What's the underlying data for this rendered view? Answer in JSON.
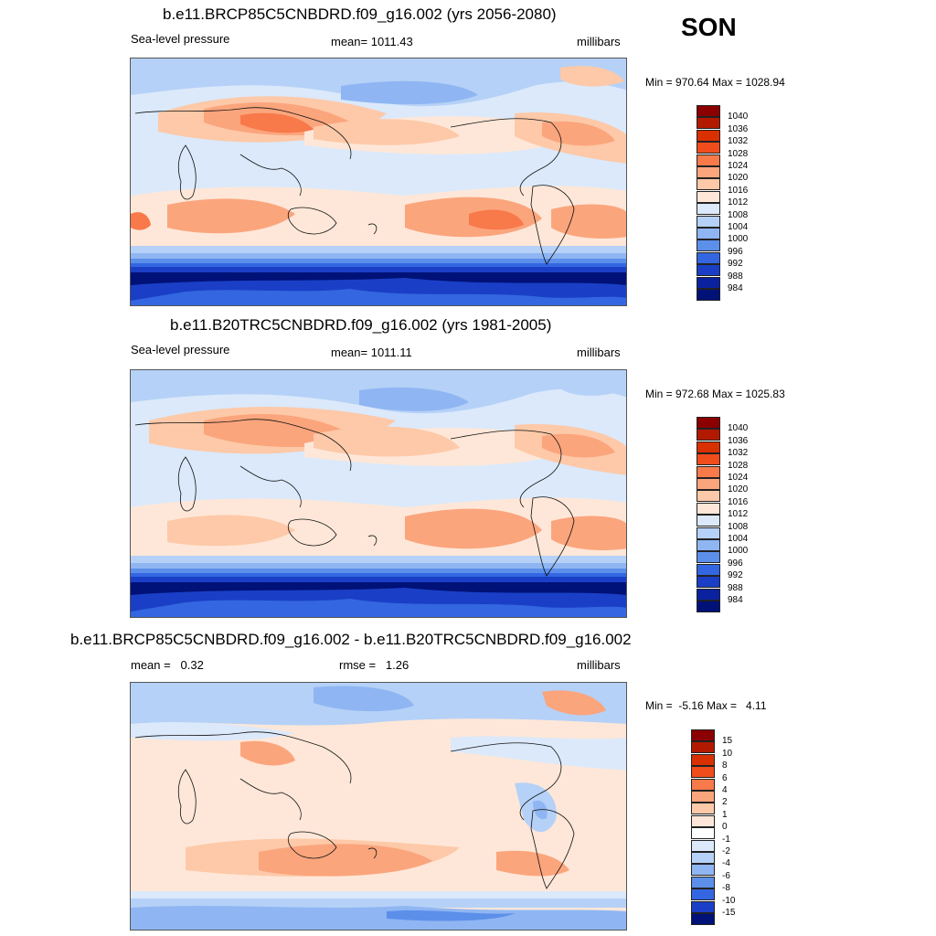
{
  "season": "SON",
  "panels": [
    {
      "title": "b.e11.BRCP85C5CNBDRD.f09_g16.002 (yrs 2056-2080)",
      "left_label": "Sea-level pressure",
      "center_label": "mean= 1011.43",
      "right_label": "millibars",
      "minmax": "Min = 970.64 Max = 1028.94",
      "colorbar": {
        "labels": [
          "1040",
          "1036",
          "1032",
          "1028",
          "1024",
          "1020",
          "1016",
          "1012",
          "1008",
          "1004",
          "1000",
          "996",
          "992",
          "988",
          "984"
        ],
        "colors": [
          "#8b0000",
          "#b21a00",
          "#d93000",
          "#f04c1c",
          "#f8794a",
          "#fba57d",
          "#fdc9a8",
          "#fee7d8",
          "#dbe9fb",
          "#b5d1f7",
          "#8fb6f2",
          "#5c8fea",
          "#3366e0",
          "#1a3fc6",
          "#0a22a0",
          "#001177"
        ]
      }
    },
    {
      "title": "b.e11.B20TRC5CNBDRD.f09_g16.002 (yrs 1981-2005)",
      "left_label": "Sea-level pressure",
      "center_label": "mean= 1011.11",
      "right_label": "millibars",
      "minmax": "Min = 972.68 Max = 1025.83",
      "colorbar": {
        "labels": [
          "1040",
          "1036",
          "1032",
          "1028",
          "1024",
          "1020",
          "1016",
          "1012",
          "1008",
          "1004",
          "1000",
          "996",
          "992",
          "988",
          "984"
        ],
        "colors": [
          "#8b0000",
          "#b21a00",
          "#d93000",
          "#f04c1c",
          "#f8794a",
          "#fba57d",
          "#fdc9a8",
          "#fee7d8",
          "#dbe9fb",
          "#b5d1f7",
          "#8fb6f2",
          "#5c8fea",
          "#3366e0",
          "#1a3fc6",
          "#0a22a0",
          "#001177"
        ]
      }
    },
    {
      "title": "b.e11.BRCP85C5CNBDRD.f09_g16.002 - b.e11.B20TRC5CNBDRD.f09_g16.002",
      "left_label": "mean =   0.32",
      "center_label": "rmse =   1.26",
      "right_label": "millibars",
      "minmax": "Min =  -5.16 Max =   4.11",
      "colorbar": {
        "labels": [
          "15",
          "10",
          "8",
          "6",
          "4",
          "2",
          "1",
          "0",
          "-1",
          "-2",
          "-4",
          "-6",
          "-8",
          "-10",
          "-15"
        ],
        "colors": [
          "#8b0000",
          "#b21a00",
          "#d93000",
          "#f04c1c",
          "#f8794a",
          "#fba57d",
          "#fdc9a8",
          "#fee7d8",
          "#ffffff",
          "#dbe9fb",
          "#b5d1f7",
          "#8fb6f2",
          "#5c8fea",
          "#3366e0",
          "#1a3fc6",
          "#001177"
        ]
      }
    }
  ],
  "chart_data": [
    {
      "type": "heatmap",
      "title": "b.e11.BRCP85C5CNBDRD.f09_g16.002 (yrs 2056-2080)",
      "variable": "Sea-level pressure",
      "units": "millibars",
      "mean": 1011.43,
      "min": 970.64,
      "max": 1028.94,
      "contour_levels": [
        984,
        988,
        992,
        996,
        1000,
        1004,
        1008,
        1012,
        1016,
        1020,
        1024,
        1028,
        1032,
        1036,
        1040
      ]
    },
    {
      "type": "heatmap",
      "title": "b.e11.B20TRC5CNBDRD.f09_g16.002 (yrs 1981-2005)",
      "variable": "Sea-level pressure",
      "units": "millibars",
      "mean": 1011.11,
      "min": 972.68,
      "max": 1025.83,
      "contour_levels": [
        984,
        988,
        992,
        996,
        1000,
        1004,
        1008,
        1012,
        1016,
        1020,
        1024,
        1028,
        1032,
        1036,
        1040
      ]
    },
    {
      "type": "heatmap",
      "title": "b.e11.BRCP85C5CNBDRD.f09_g16.002 - b.e11.B20TRC5CNBDRD.f09_g16.002",
      "units": "millibars",
      "mean": 0.32,
      "rmse": 1.26,
      "min": -5.16,
      "max": 4.11,
      "contour_levels": [
        -15,
        -10,
        -8,
        -6,
        -4,
        -2,
        -1,
        0,
        1,
        2,
        4,
        6,
        8,
        10,
        15
      ]
    }
  ]
}
